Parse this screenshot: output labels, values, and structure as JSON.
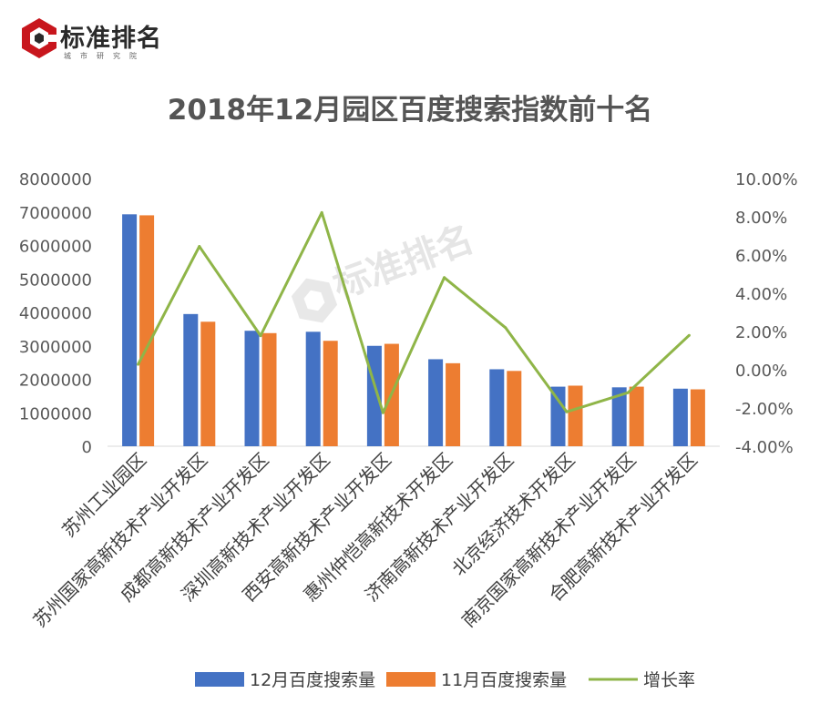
{
  "brand": {
    "name": "标准排名",
    "subtitle": "城市研究院"
  },
  "chart_data": {
    "type": "bar",
    "title": "2018年12月园区百度搜索指数前十名",
    "categories": [
      "苏州工业园区",
      "苏州国家高新技术产业开发区",
      "成都高新技术产业开发区",
      "深圳高新技术产业开发区",
      "西安高新技术产业开发区",
      "惠州仲恺高新技术开发区",
      "济南高新技术产业开发区",
      "北京经济技术开发区",
      "南京国家高新技术产业开发区",
      "合肥高新技术产业开发区"
    ],
    "series": [
      {
        "name": "12月百度搜索量",
        "type": "bar",
        "axis": "left",
        "color": "#4472C4",
        "values": [
          6930000,
          3950000,
          3450000,
          3420000,
          3000000,
          2600000,
          2300000,
          1780000,
          1760000,
          1720000
        ]
      },
      {
        "name": "11月百度搜索量",
        "type": "bar",
        "axis": "left",
        "color": "#ED7D31",
        "values": [
          6900000,
          3720000,
          3380000,
          3150000,
          3060000,
          2480000,
          2250000,
          1810000,
          1780000,
          1700000
        ]
      },
      {
        "name": "增长率",
        "type": "line",
        "axis": "right",
        "color": "#8FB548",
        "values": [
          0.0028,
          0.0645,
          0.0178,
          0.0822,
          -0.0225,
          0.0482,
          0.022,
          -0.022,
          -0.012,
          0.018
        ]
      }
    ],
    "y_left": {
      "min": 0,
      "max": 8000000,
      "step": 1000000,
      "tick_labels": [
        "0",
        "1000000",
        "2000000",
        "3000000",
        "4000000",
        "5000000",
        "6000000",
        "7000000",
        "8000000"
      ]
    },
    "y_right": {
      "min": -0.04,
      "max": 0.1,
      "step": 0.02,
      "tick_labels": [
        "-4.00%",
        "-2.00%",
        "0.00%",
        "2.00%",
        "4.00%",
        "6.00%",
        "8.00%",
        "10.00%"
      ]
    },
    "grid": false,
    "legend": "bottom"
  }
}
